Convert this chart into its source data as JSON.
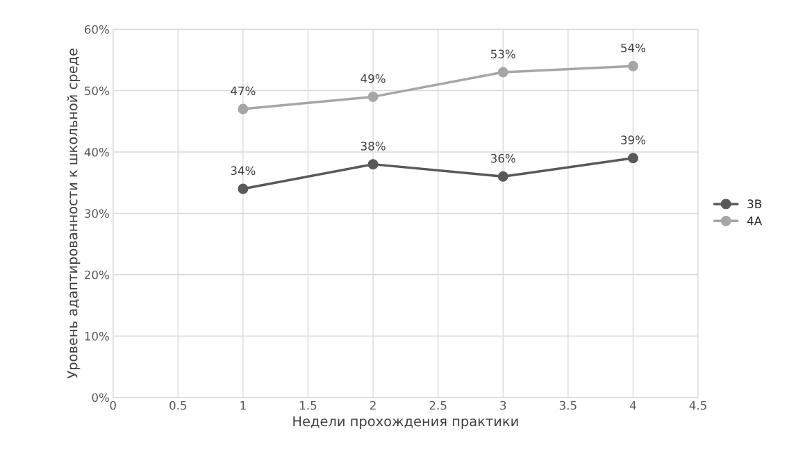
{
  "chart_data": {
    "type": "line",
    "xlabel": "Недели прохождения практики",
    "ylabel": "Уровень адаптированности к школьной среде",
    "x": [
      1,
      2,
      3,
      4
    ],
    "series": [
      {
        "name": "3В",
        "color": "#595959",
        "values": [
          34,
          38,
          36,
          39
        ],
        "value_labels": [
          "34%",
          "38%",
          "36%",
          "39%"
        ]
      },
      {
        "name": "4А",
        "color": "#a6a6a6",
        "values": [
          47,
          49,
          53,
          54
        ],
        "value_labels": [
          "47%",
          "49%",
          "53%",
          "54%"
        ]
      }
    ],
    "xlim": [
      0,
      4.5
    ],
    "xticks": [
      0,
      0.5,
      1,
      1.5,
      2,
      2.5,
      3,
      3.5,
      4,
      4.5
    ],
    "ylim": [
      0,
      60
    ],
    "yticks": [
      {
        "value": 0,
        "label": "0%"
      },
      {
        "value": 10,
        "label": "10%"
      },
      {
        "value": 20,
        "label": "20%"
      },
      {
        "value": 30,
        "label": "30%"
      },
      {
        "value": 40,
        "label": "40%"
      },
      {
        "value": 50,
        "label": "50%"
      },
      {
        "value": 60,
        "label": "60%"
      }
    ],
    "grid": true,
    "legend": "right",
    "marker": "circle",
    "line_style": "solid"
  }
}
